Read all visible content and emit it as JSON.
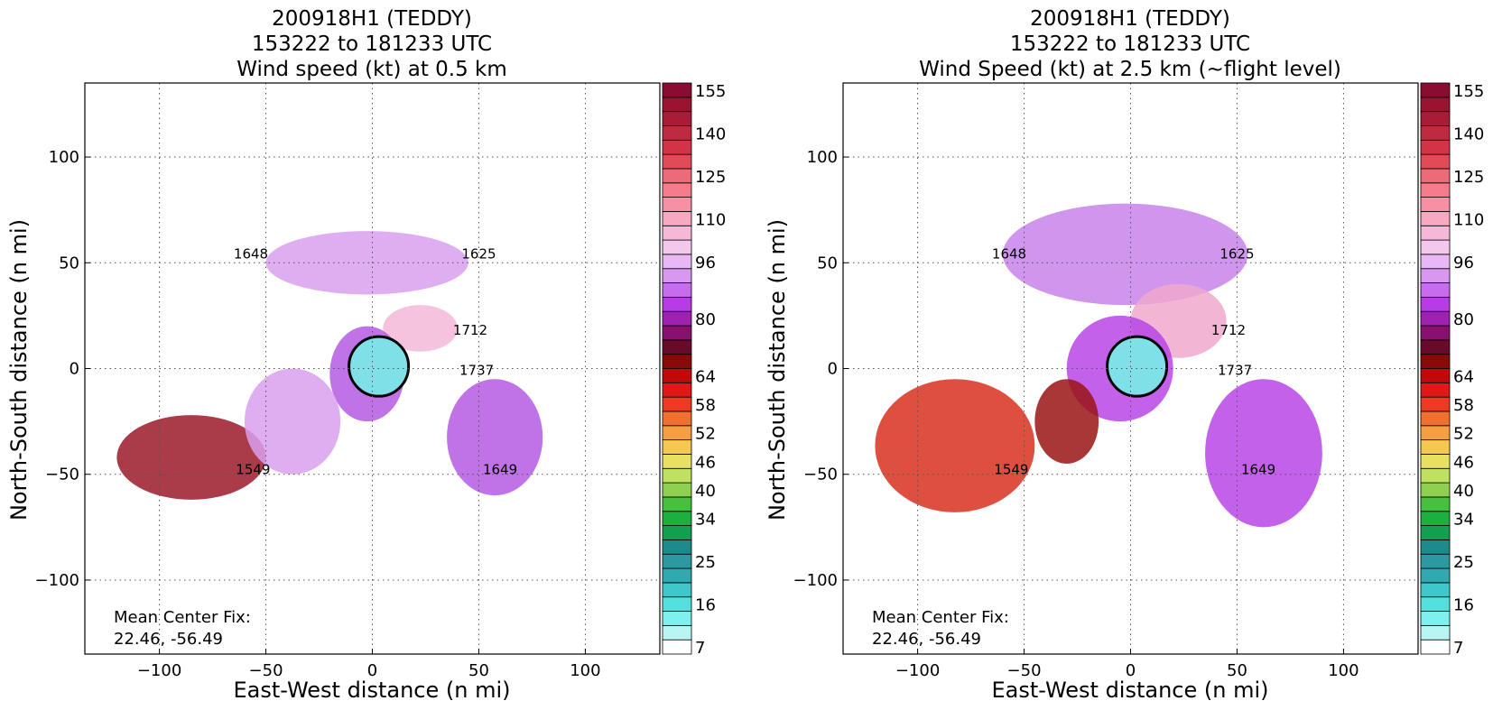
{
  "chart_data": [
    {
      "type": "heatmap",
      "title_lines": [
        "200918H1 (TEDDY)",
        "153222 to 181233 UTC",
        "Wind speed (kt) at 0.5 km"
      ],
      "xlabel": "East-West distance (n mi)",
      "ylabel": "North-South distance (n mi)",
      "xlim": [
        -135,
        135
      ],
      "ylim": [
        -135,
        135
      ],
      "xticks": [
        -100,
        -50,
        0,
        50,
        100
      ],
      "yticks": [
        -100,
        -50,
        0,
        50,
        100
      ],
      "grid": "dotted",
      "annotation_lines": [
        "Mean Center Fix:",
        "22.46, -56.49"
      ],
      "flight_time_labels": [
        {
          "text": "1625",
          "x": 50,
          "y": 52
        },
        {
          "text": "1648",
          "x": -57,
          "y": 52
        },
        {
          "text": "1712",
          "x": 46,
          "y": 16
        },
        {
          "text": "1737",
          "x": 49,
          "y": -3
        },
        {
          "text": "1649",
          "x": 60,
          "y": -50
        },
        {
          "text": "1549",
          "x": -56,
          "y": -50
        }
      ],
      "regions": [
        {
          "color": "#d9a0ee",
          "x": [
            -50,
            45
          ],
          "y": [
            35,
            65
          ]
        },
        {
          "color": "#f5b8d8",
          "x": [
            5,
            40
          ],
          "y": [
            8,
            30
          ]
        },
        {
          "color": "#b45be3",
          "x": [
            -20,
            15
          ],
          "y": [
            -25,
            20
          ]
        },
        {
          "color": "#b45be3",
          "x": [
            35,
            80
          ],
          "y": [
            -60,
            -5
          ]
        },
        {
          "color": "#9b1a2a",
          "x": [
            -120,
            -50
          ],
          "y": [
            -62,
            -22
          ]
        },
        {
          "color": "#d9a0ee",
          "x": [
            -60,
            -15
          ],
          "y": [
            -50,
            0
          ]
        }
      ]
    },
    {
      "type": "heatmap",
      "title_lines": [
        "200918H1 (TEDDY)",
        "153222 to 181233 UTC",
        "Wind Speed (kt) at 2.5 km (~flight level)"
      ],
      "xlabel": "East-West distance (n mi)",
      "ylabel": "North-South distance (n mi)",
      "xlim": [
        -135,
        135
      ],
      "ylim": [
        -135,
        135
      ],
      "xticks": [
        -100,
        -50,
        0,
        50,
        100
      ],
      "yticks": [
        -100,
        -50,
        0,
        50,
        100
      ],
      "grid": "dotted",
      "annotation_lines": [
        "Mean Center Fix:",
        "22.46, -56.49"
      ],
      "flight_time_labels": [
        {
          "text": "1625",
          "x": 50,
          "y": 52
        },
        {
          "text": "1648",
          "x": -57,
          "y": 52
        },
        {
          "text": "1712",
          "x": 46,
          "y": 16
        },
        {
          "text": "1737",
          "x": 49,
          "y": -3
        },
        {
          "text": "1649",
          "x": 60,
          "y": -50
        },
        {
          "text": "1549",
          "x": -56,
          "y": -50
        }
      ],
      "regions": [
        {
          "color": "#c883ea",
          "x": [
            -60,
            55
          ],
          "y": [
            30,
            78
          ]
        },
        {
          "color": "#f0a8cc",
          "x": [
            0,
            45
          ],
          "y": [
            5,
            40
          ]
        },
        {
          "color": "#b845e6",
          "x": [
            -30,
            20
          ],
          "y": [
            -25,
            25
          ]
        },
        {
          "color": "#b845e6",
          "x": [
            35,
            90
          ],
          "y": [
            -75,
            -5
          ]
        },
        {
          "color": "#d8301e",
          "x": [
            -120,
            -45
          ],
          "y": [
            -68,
            -5
          ]
        },
        {
          "color": "#9b1414",
          "x": [
            -45,
            -15
          ],
          "y": [
            -45,
            -5
          ]
        }
      ]
    }
  ],
  "colorbar": {
    "levels": [
      7,
      10,
      13,
      16,
      19,
      22,
      25,
      28,
      31,
      34,
      37,
      40,
      43,
      46,
      49,
      52,
      55,
      58,
      61,
      64,
      68,
      72,
      76,
      80,
      84,
      88,
      92,
      96,
      100,
      105,
      110,
      115,
      120,
      125,
      130,
      135,
      140,
      145,
      150,
      155,
      160
    ],
    "tick_labels": [
      "7",
      "16",
      "25",
      "34",
      "40",
      "46",
      "52",
      "58",
      "64",
      "80",
      "96",
      "110",
      "125",
      "140",
      "155"
    ],
    "colors": [
      "#ffffff",
      "#b8f5f5",
      "#7ff0f0",
      "#55e0e0",
      "#3ec8cc",
      "#30aab0",
      "#2a9aa0",
      "#1f8a8c",
      "#11a050",
      "#1cb040",
      "#47c040",
      "#8fd050",
      "#c0e060",
      "#e8e060",
      "#f5c850",
      "#f5a040",
      "#f07030",
      "#ee3a22",
      "#e01818",
      "#c00a0a",
      "#8a0a0a",
      "#6a0a2a",
      "#8a1070",
      "#a020b0",
      "#b83ce6",
      "#c86cee",
      "#d898f0",
      "#e8b8f4",
      "#f3c8ec",
      "#f7b8d8",
      "#f8a8c0",
      "#f890a4",
      "#f47c8c",
      "#ee6a78",
      "#e24a58",
      "#d03446",
      "#be2a40",
      "#a81c38",
      "#9a1432",
      "#8a0c30"
    ]
  }
}
